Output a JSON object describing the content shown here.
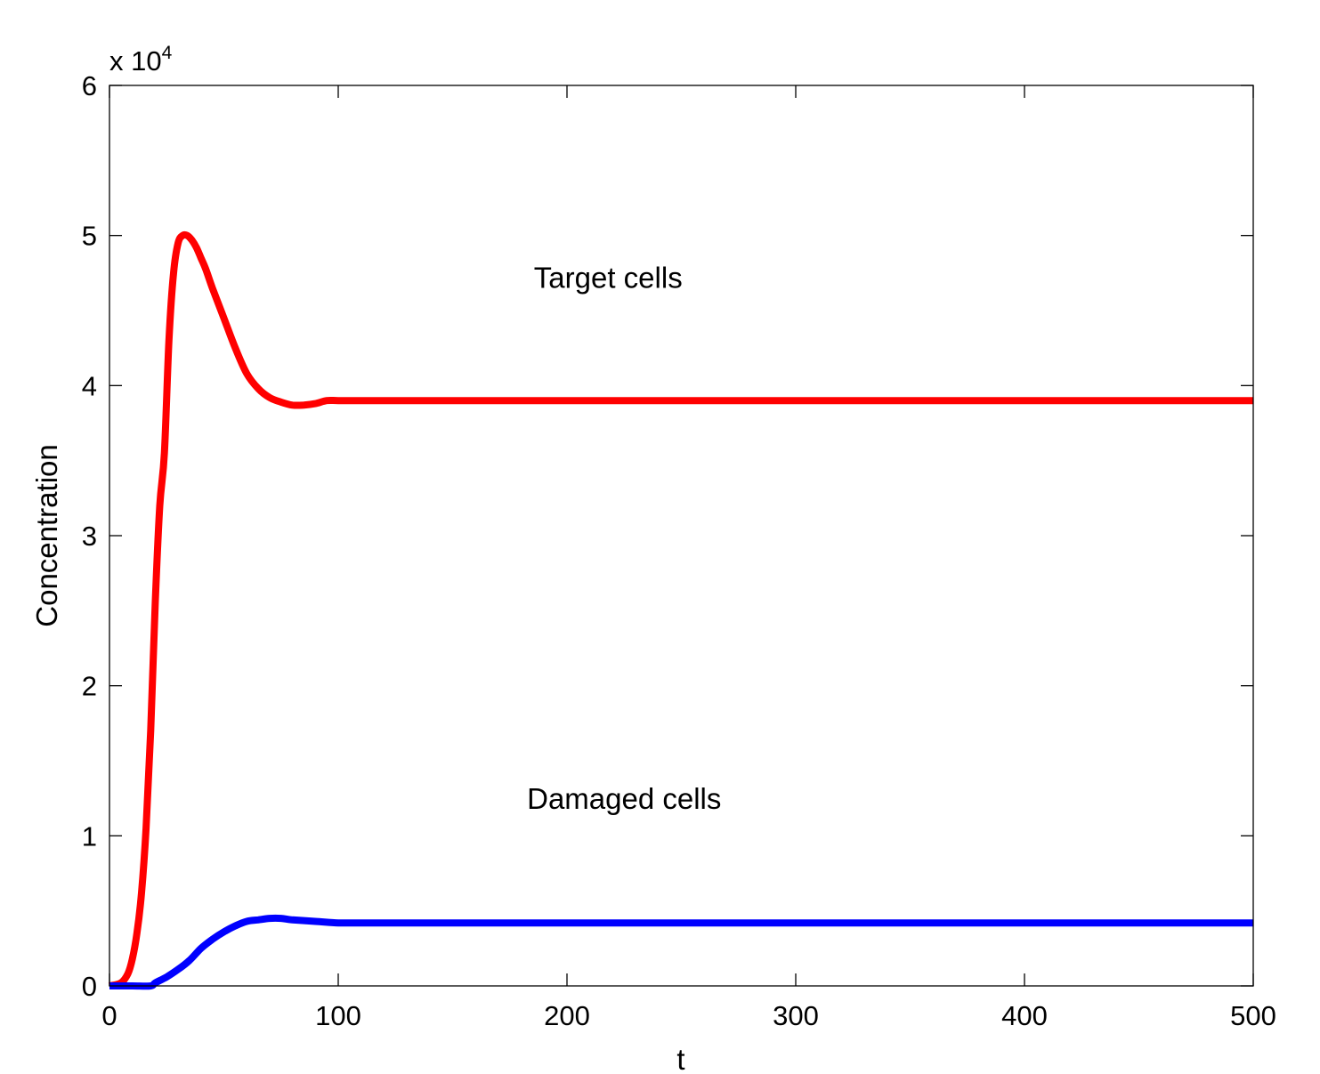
{
  "chart_data": {
    "type": "line",
    "title": "",
    "xlabel": "t",
    "ylabel": "Concentration",
    "y_multiplier": {
      "base": "x 10",
      "exponent": "4"
    },
    "xlim": [
      0,
      500
    ],
    "ylim": [
      0,
      6
    ],
    "xticks": [
      0,
      100,
      200,
      300,
      400,
      500
    ],
    "yticks": [
      0,
      1,
      2,
      3,
      4,
      5,
      6
    ],
    "xtick_labels": [
      "0",
      "100",
      "200",
      "300",
      "400",
      "500"
    ],
    "ytick_labels": [
      "0",
      "1",
      "2",
      "3",
      "4",
      "5",
      "6"
    ],
    "grid": false,
    "legend": "none",
    "series": [
      {
        "color": "#ff0000",
        "x": [
          0,
          5,
          8,
          10,
          12,
          14,
          16,
          18,
          20,
          22,
          24,
          26,
          28,
          30,
          32,
          34,
          36,
          38,
          40,
          42,
          45,
          50,
          55,
          60,
          65,
          70,
          75,
          80,
          85,
          90,
          95,
          100,
          110,
          120,
          130,
          150,
          200,
          300,
          400,
          500
        ],
        "y": [
          0,
          0.02,
          0.08,
          0.18,
          0.35,
          0.62,
          1.05,
          1.7,
          2.55,
          3.2,
          3.55,
          4.3,
          4.75,
          4.95,
          5.0,
          5.0,
          4.97,
          4.92,
          4.85,
          4.78,
          4.65,
          4.45,
          4.25,
          4.08,
          3.98,
          3.92,
          3.89,
          3.87,
          3.87,
          3.88,
          3.9,
          3.9,
          3.9,
          3.9,
          3.9,
          3.9,
          3.9,
          3.9,
          3.9,
          3.9
        ]
      },
      {
        "color": "#0000ff",
        "x": [
          0,
          10,
          18,
          20,
          25,
          30,
          35,
          40,
          45,
          50,
          55,
          60,
          65,
          70,
          75,
          80,
          90,
          100,
          110,
          150,
          200,
          300,
          400,
          500
        ],
        "y": [
          0,
          0,
          0,
          0.02,
          0.06,
          0.11,
          0.17,
          0.25,
          0.31,
          0.36,
          0.4,
          0.43,
          0.44,
          0.45,
          0.45,
          0.44,
          0.43,
          0.42,
          0.42,
          0.42,
          0.42,
          0.42,
          0.42,
          0.42
        ]
      }
    ],
    "annotations": [
      {
        "text": "Target cells",
        "x": 218,
        "y": 4.65
      },
      {
        "text": "Damaged cells",
        "x": 225,
        "y": 1.18
      }
    ]
  }
}
